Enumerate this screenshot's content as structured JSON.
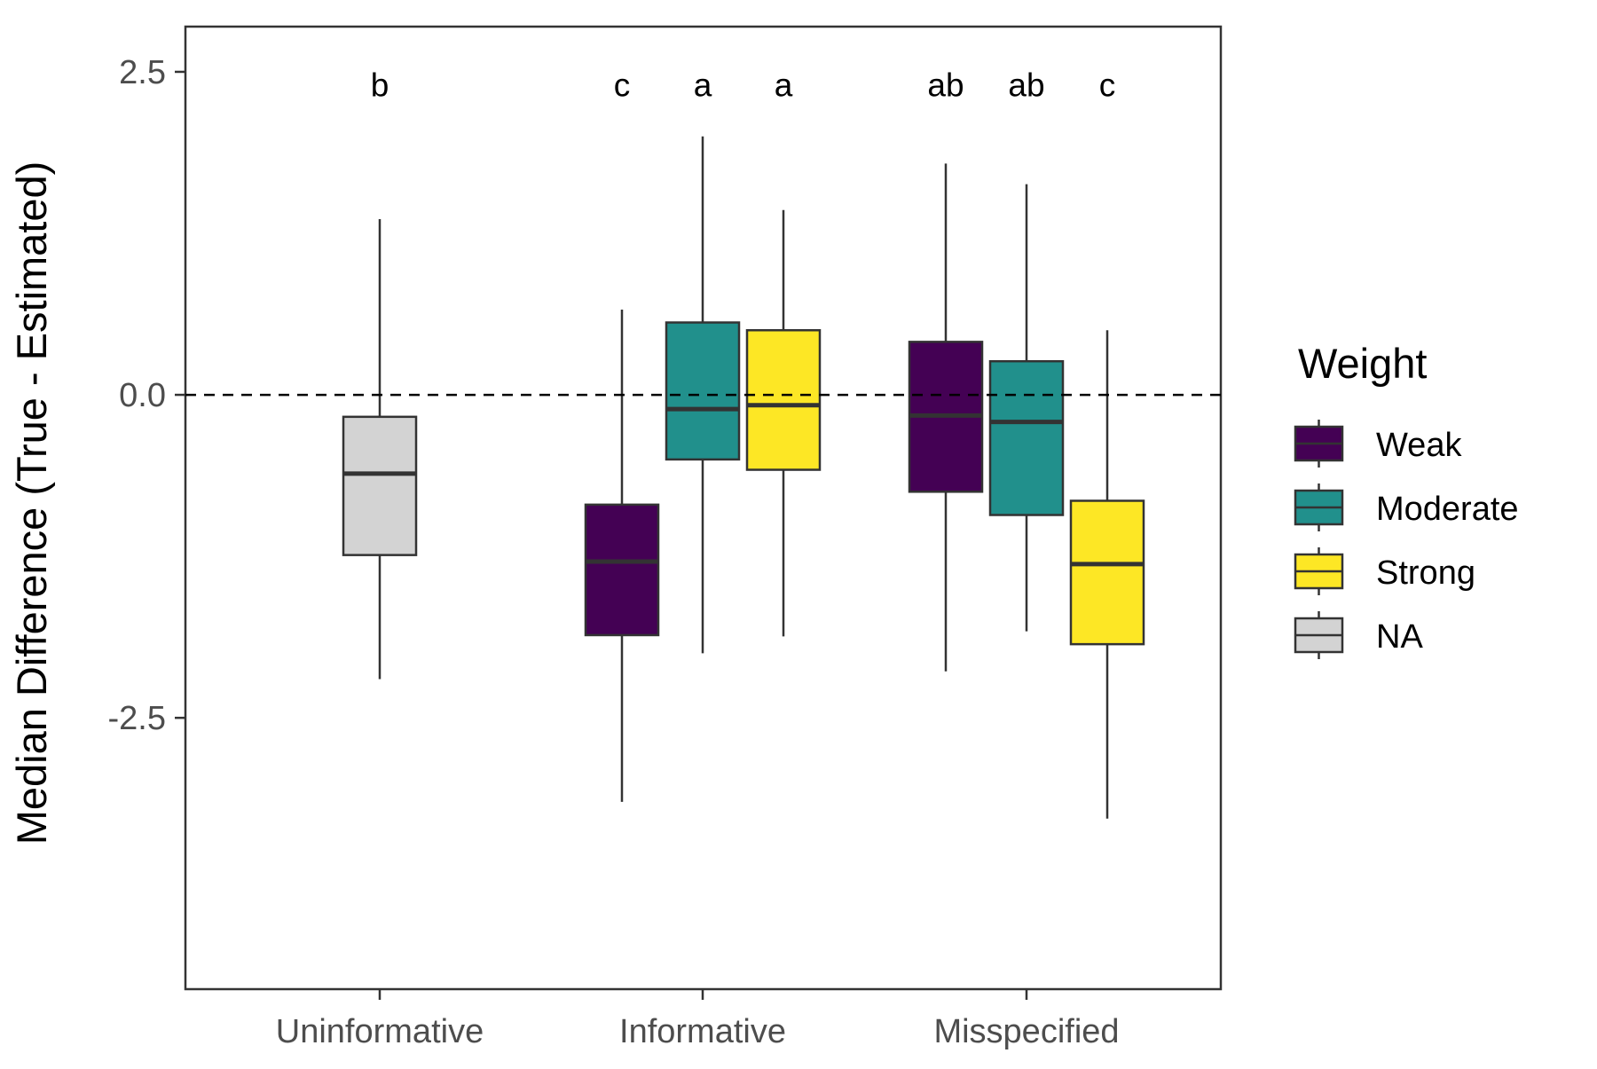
{
  "chart_data": {
    "type": "box",
    "title": "",
    "xlabel": "",
    "ylabel": "Median Difference (True - Estimated)",
    "ylim": [
      -4.6,
      2.85
    ],
    "yticks": [
      2.5,
      0.0,
      -2.5
    ],
    "ytick_labels": [
      "2.5",
      "0.0",
      "-2.5"
    ],
    "reference_line": {
      "y": 0.0,
      "style": "dashed",
      "color": "#000000"
    },
    "categories": [
      "Uninformative",
      "Informative",
      "Misspecified"
    ],
    "grid": false,
    "legend": {
      "title": "Weight",
      "placement": "right",
      "items": [
        {
          "name": "Weak",
          "color": "#440154"
        },
        {
          "name": "Moderate",
          "color": "#21908C"
        },
        {
          "name": "Strong",
          "color": "#FDE725"
        },
        {
          "name": "NA",
          "color": "#D3D3D3"
        }
      ]
    },
    "boxes": [
      {
        "category": "Uninformative",
        "weight": "NA",
        "color": "#D3D3D3",
        "slot": 0,
        "slots": 1,
        "whisker_low": -2.2,
        "q1": -1.24,
        "median": -0.61,
        "q3": -0.17,
        "whisker_high": 1.36,
        "letter": "b"
      },
      {
        "category": "Informative",
        "weight": "Weak",
        "color": "#440154",
        "slot": 0,
        "slots": 3,
        "whisker_low": -3.15,
        "q1": -1.86,
        "median": -1.29,
        "q3": -0.85,
        "whisker_high": 0.66,
        "letter": "c"
      },
      {
        "category": "Informative",
        "weight": "Moderate",
        "color": "#21908C",
        "slot": 1,
        "slots": 3,
        "whisker_low": -2.0,
        "q1": -0.5,
        "median": -0.11,
        "q3": 0.56,
        "whisker_high": 2.0,
        "letter": "a"
      },
      {
        "category": "Informative",
        "weight": "Strong",
        "color": "#FDE725",
        "slot": 2,
        "slots": 3,
        "whisker_low": -1.87,
        "q1": -0.58,
        "median": -0.08,
        "q3": 0.5,
        "whisker_high": 1.43,
        "letter": "a"
      },
      {
        "category": "Misspecified",
        "weight": "Weak",
        "color": "#440154",
        "slot": 0,
        "slots": 3,
        "whisker_low": -2.14,
        "q1": -0.75,
        "median": -0.16,
        "q3": 0.41,
        "whisker_high": 1.79,
        "letter": "ab"
      },
      {
        "category": "Misspecified",
        "weight": "Moderate",
        "color": "#21908C",
        "slot": 1,
        "slots": 3,
        "whisker_low": -1.83,
        "q1": -0.93,
        "median": -0.21,
        "q3": 0.26,
        "whisker_high": 1.63,
        "letter": "ab"
      },
      {
        "category": "Misspecified",
        "weight": "Strong",
        "color": "#FDE725",
        "slot": 2,
        "slots": 3,
        "whisker_low": -3.28,
        "q1": -1.93,
        "median": -1.31,
        "q3": -0.82,
        "whisker_high": 0.5,
        "letter": "c"
      }
    ],
    "letter_y": 2.45
  }
}
